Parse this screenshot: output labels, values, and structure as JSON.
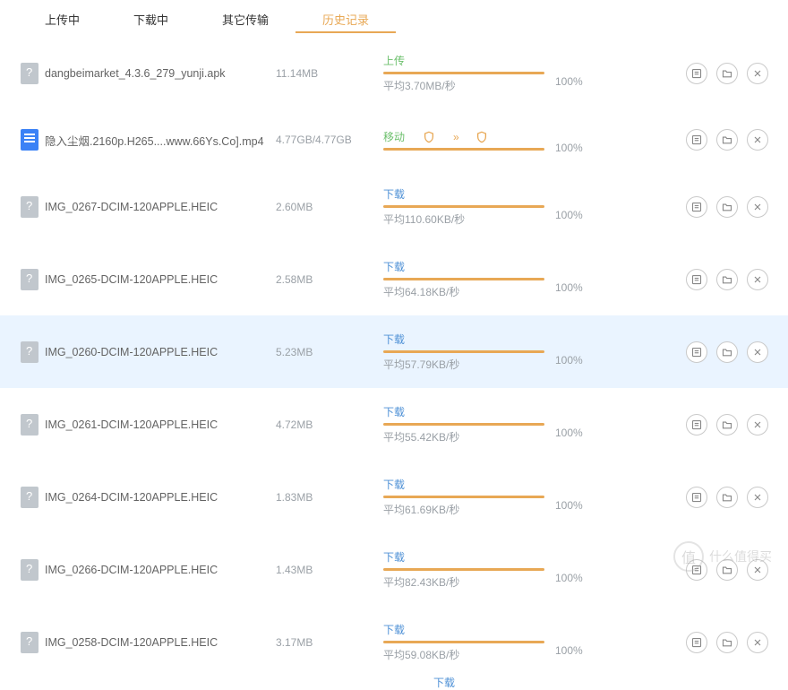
{
  "colors": {
    "accent": "#e8a855",
    "link": "#4f91d6",
    "green": "#6bbf6b",
    "muted": "#9aa0a6",
    "row_hover": "#eaf4ff"
  },
  "tabs": [
    {
      "label": "上传中",
      "active": false
    },
    {
      "label": "下载中",
      "active": false
    },
    {
      "label": "其它传输",
      "active": false
    },
    {
      "label": "历史记录",
      "active": true
    }
  ],
  "rows": [
    {
      "icon": "unk",
      "name": "dangbeimarket_4.3.6_279_yunji.apk",
      "size": "11.14MB",
      "status": "上传",
      "status_class": "upload",
      "speed": "平均3.70MB/秒",
      "pct": "100%",
      "mode": null,
      "hover": false
    },
    {
      "icon": "doc",
      "name": "隐入尘烟.2160p.H265....www.66Ys.Co].mp4",
      "size": "4.77GB/4.77GB",
      "status": null,
      "status_class": "",
      "speed": "",
      "pct": "100%",
      "mode": "移动",
      "hover": false
    },
    {
      "icon": "unk",
      "name": "IMG_0267-DCIM-120APPLE.HEIC",
      "size": "2.60MB",
      "status": "下载",
      "status_class": "",
      "speed": "平均110.60KB/秒",
      "pct": "100%",
      "mode": null,
      "hover": false
    },
    {
      "icon": "unk",
      "name": "IMG_0265-DCIM-120APPLE.HEIC",
      "size": "2.58MB",
      "status": "下载",
      "status_class": "",
      "speed": "平均64.18KB/秒",
      "pct": "100%",
      "mode": null,
      "hover": false
    },
    {
      "icon": "unk",
      "name": "IMG_0260-DCIM-120APPLE.HEIC",
      "size": "5.23MB",
      "status": "下载",
      "status_class": "",
      "speed": "平均57.79KB/秒",
      "pct": "100%",
      "mode": null,
      "hover": true
    },
    {
      "icon": "unk",
      "name": "IMG_0261-DCIM-120APPLE.HEIC",
      "size": "4.72MB",
      "status": "下载",
      "status_class": "",
      "speed": "平均55.42KB/秒",
      "pct": "100%",
      "mode": null,
      "hover": false
    },
    {
      "icon": "unk",
      "name": "IMG_0264-DCIM-120APPLE.HEIC",
      "size": "1.83MB",
      "status": "下载",
      "status_class": "",
      "speed": "平均61.69KB/秒",
      "pct": "100%",
      "mode": null,
      "hover": false
    },
    {
      "icon": "unk",
      "name": "IMG_0266-DCIM-120APPLE.HEIC",
      "size": "1.43MB",
      "status": "下载",
      "status_class": "",
      "speed": "平均82.43KB/秒",
      "pct": "100%",
      "mode": null,
      "hover": false
    },
    {
      "icon": "unk",
      "name": "IMG_0258-DCIM-120APPLE.HEIC",
      "size": "3.17MB",
      "status": "下载",
      "status_class": "",
      "speed": "平均59.08KB/秒",
      "pct": "100%",
      "mode": null,
      "hover": false
    }
  ],
  "partial_status": "下载",
  "watermark": {
    "icon_text": "值",
    "text": "什么值得买"
  }
}
